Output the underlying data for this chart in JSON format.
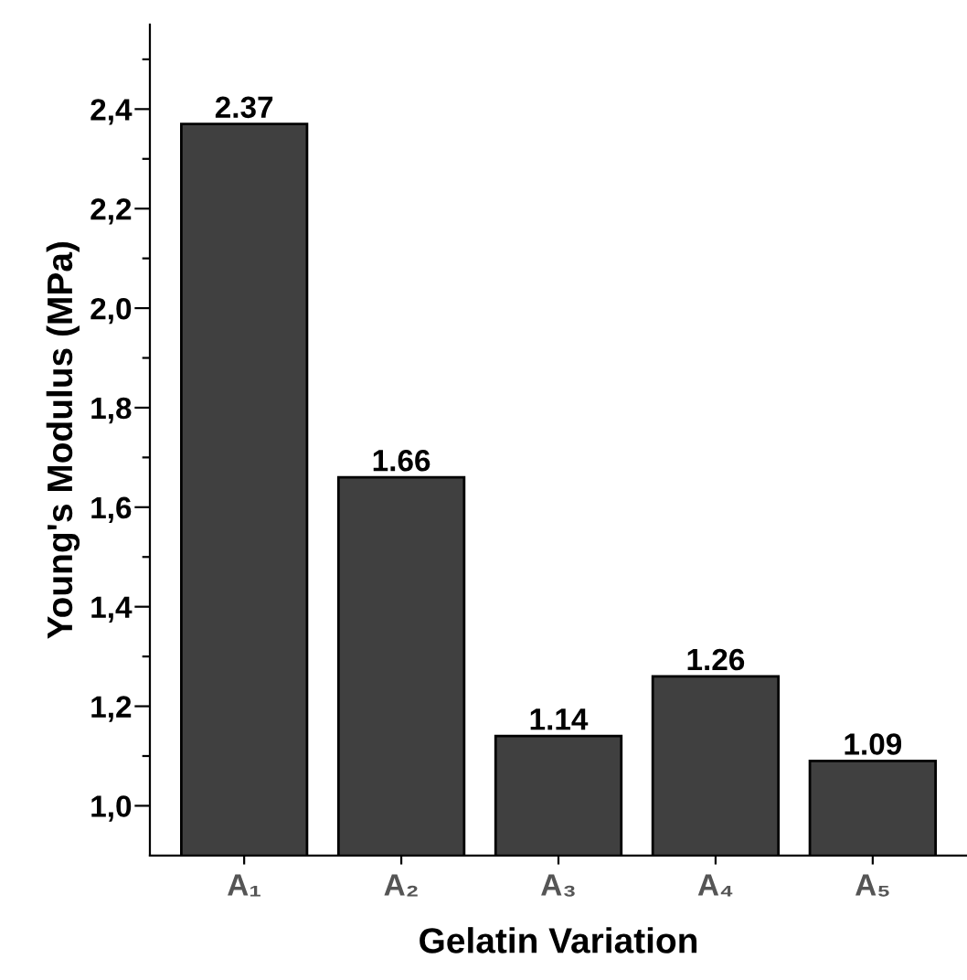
{
  "chart_data": {
    "type": "bar",
    "xlabel": "Gelatin Variation",
    "ylabel": "Young's Modulus (MPa)",
    "categories": [
      "A₁",
      "A₂",
      "A₃",
      "A₄",
      "A₅"
    ],
    "values": [
      2.37,
      1.66,
      1.14,
      1.26,
      1.09
    ],
    "color": "#404040",
    "data_labels": true,
    "ylim": [
      0.9,
      2.57
    ],
    "yticks": [
      {
        "value": 1.0,
        "label": "1,0"
      },
      {
        "value": 1.1,
        "label": null
      },
      {
        "value": 1.2,
        "label": "1,2"
      },
      {
        "value": 1.3,
        "label": null
      },
      {
        "value": 1.4,
        "label": "1,4"
      },
      {
        "value": 1.5,
        "label": null
      },
      {
        "value": 1.6,
        "label": "1,6"
      },
      {
        "value": 1.7,
        "label": null
      },
      {
        "value": 1.8,
        "label": "1,8"
      },
      {
        "value": 1.9,
        "label": null
      },
      {
        "value": 2.0,
        "label": "2,0"
      },
      {
        "value": 2.1,
        "label": null
      },
      {
        "value": 2.2,
        "label": "2,2"
      },
      {
        "value": 2.3,
        "label": null
      },
      {
        "value": 2.4,
        "label": "2,4"
      },
      {
        "value": 2.5,
        "label": null
      }
    ],
    "grid": false,
    "legend": false
  }
}
